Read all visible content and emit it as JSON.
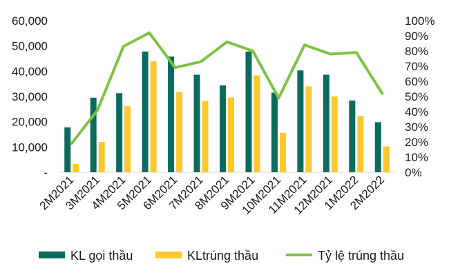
{
  "chart_data": {
    "type": "bar",
    "categories": [
      "2M2021",
      "3M2021",
      "4M2021",
      "5M2021",
      "6M2021",
      "7M2021",
      "8M2021",
      "9M2021",
      "10M2021",
      "11M2021",
      "12M2021",
      "1M2022",
      "2M2022"
    ],
    "series": [
      {
        "name": "KL gọi thầu",
        "type": "bar",
        "axis": "left",
        "color": "#0b6b5d",
        "values": [
          17800,
          29500,
          31300,
          47800,
          45800,
          38600,
          34400,
          47800,
          31500,
          40300,
          38600,
          28400,
          19800
        ]
      },
      {
        "name": "KLtrúng thầu",
        "type": "bar",
        "axis": "left",
        "color": "#fcc82e",
        "values": [
          3300,
          12000,
          26100,
          43900,
          31700,
          28200,
          29600,
          38300,
          15600,
          34000,
          30000,
          22300,
          10200
        ]
      },
      {
        "name": "Tỷ lệ trúng thầu",
        "type": "line",
        "axis": "right",
        "color": "#7dc242",
        "values": [
          0.19,
          0.41,
          0.83,
          0.92,
          0.69,
          0.73,
          0.86,
          0.8,
          0.49,
          0.84,
          0.78,
          0.79,
          0.52
        ]
      }
    ],
    "y_left": {
      "ylim": [
        0,
        60000
      ],
      "tick_labels": [
        "-",
        "10,000",
        "20,000",
        "30,000",
        "40,000",
        "50,000",
        "60,000"
      ]
    },
    "y_right": {
      "ylim": [
        0,
        1
      ],
      "tick_labels": [
        "0%",
        "10%",
        "20%",
        "30%",
        "40%",
        "50%",
        "60%",
        "70%",
        "80%",
        "90%",
        "100%"
      ]
    },
    "grid": false,
    "legend_position": "bottom"
  }
}
